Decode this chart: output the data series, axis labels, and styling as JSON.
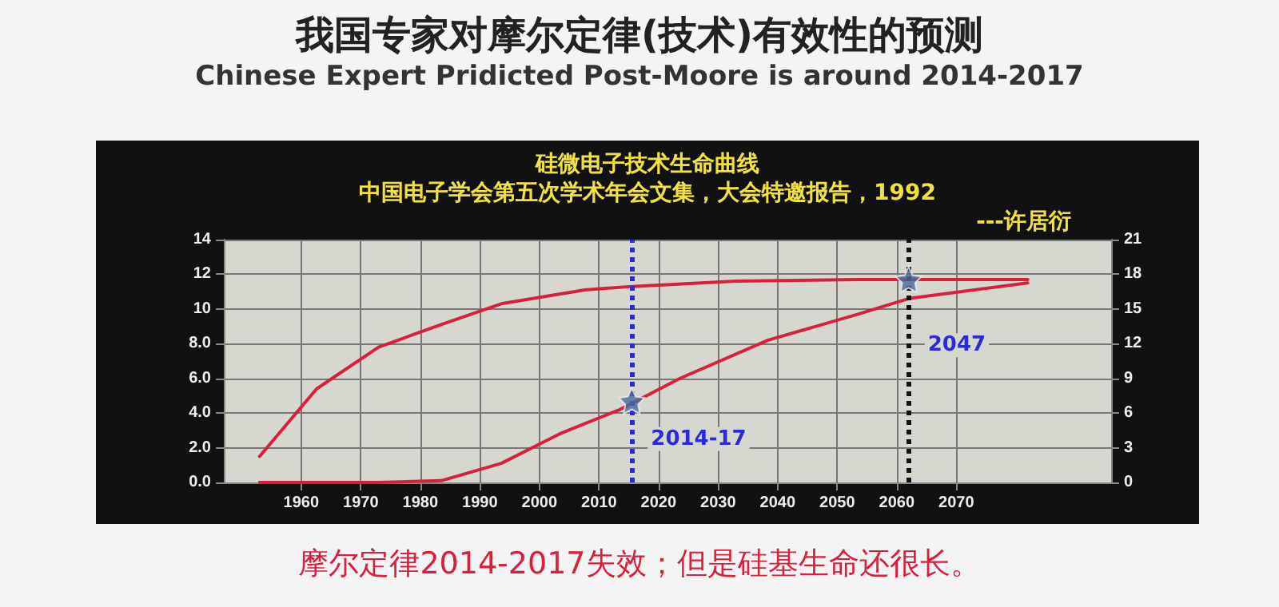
{
  "chart_data": {
    "type": "line",
    "title": "我国专家对摩尔定律(技术)有效性的预测",
    "subtitle": "Chinese Expert Pridicted Post-Moore is around 2014-2017",
    "annotations": [
      "硅微电子技术生命曲线",
      "中国电子学会第五次学术年会文集，大会特邀报告，1992",
      "---许居衍",
      "2014-17",
      "2047",
      "摩尔定律2014-2017失效；但是硅基生命还很长。"
    ],
    "series": [
      {
        "color": "#d8203c",
        "x": [
          1953,
          1962.6,
          1973,
          1983.5,
          1993.6,
          2007.6,
          2015.5,
          2033,
          2053.5,
          2082
        ],
        "values": [
          1.5,
          5.4,
          7.8,
          9.1,
          10.3,
          11.1,
          11.3,
          11.6,
          11.7,
          11.7
        ]
      },
      {
        "color": "#d8203c",
        "x": [
          1953,
          1973,
          1983.5,
          1993.6,
          2003.4,
          2013.5,
          2023.6,
          2038.4,
          2053.5,
          2062,
          2082
        ],
        "values": [
          0,
          0,
          0.1,
          1.1,
          2.8,
          4.2,
          6.0,
          8.2,
          9.7,
          10.6,
          11.5
        ]
      },
      {
        "type": "scatter",
        "marker": "star",
        "color": "#4a6a9a",
        "x": [
          2015.5,
          2062
        ],
        "values": [
          4.7,
          11.7
        ]
      }
    ],
    "xlim": [
      1947,
      2096
    ],
    "xticks": [
      1960,
      1970,
      1980,
      1990,
      2000,
      2010,
      2020,
      2030,
      2040,
      2050,
      2060,
      2070
    ],
    "ylim": [
      0,
      14
    ],
    "yticks": [
      {
        "value": 0,
        "label": "0.0"
      },
      {
        "value": 2,
        "label": "2.0"
      },
      {
        "value": 4,
        "label": "4.0"
      },
      {
        "value": 6,
        "label": "6.0"
      },
      {
        "value": 8,
        "label": "8.0"
      },
      10,
      12,
      14
    ],
    "y2lim": [
      0,
      21
    ],
    "y2ticks": [
      0,
      3,
      6,
      9,
      12,
      15,
      18,
      21
    ],
    "ref_lines": [
      {
        "axis": "x",
        "value": 2015.5,
        "color": "#2a2ad8",
        "line_style": "dotted"
      },
      {
        "axis": "x",
        "value": 2062,
        "color": "#111111",
        "line_style": "dotted"
      }
    ],
    "grid": true,
    "marker": "none",
    "line_style": "solid"
  }
}
